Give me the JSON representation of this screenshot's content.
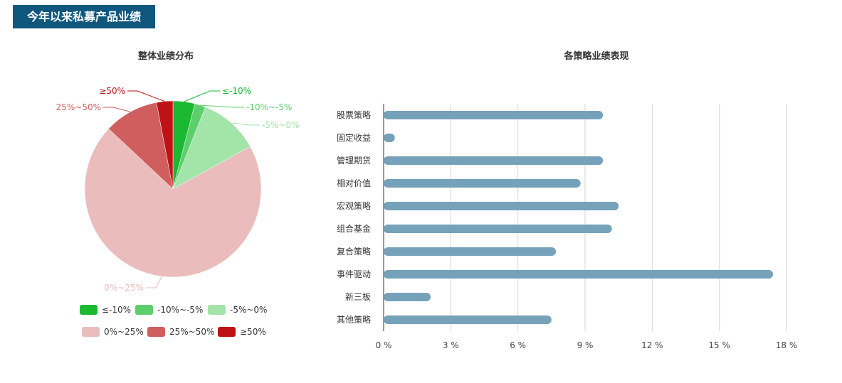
{
  "header": {
    "title": "今年以来私募产品业绩"
  },
  "charts": {
    "pie_title": "整体业绩分布",
    "bar_title": "各策略业绩表现"
  },
  "chart_data": [
    {
      "type": "pie",
      "title": "整体业绩分布",
      "legend_position": "bottom",
      "slices": [
        {
          "label": "≤-10%",
          "value": 4,
          "color": "#1bb832"
        },
        {
          "label": "-10%~-5%",
          "value": 2,
          "color": "#5ccf6c"
        },
        {
          "label": "-5%~0%",
          "value": 11,
          "color": "#a3e4a9"
        },
        {
          "label": "0%~25%",
          "value": 70,
          "color": "#ebbcbc"
        },
        {
          "label": "25%~50%",
          "value": 10,
          "color": "#d05e5e"
        },
        {
          "label": "≥50%",
          "value": 3,
          "color": "#bd1317"
        }
      ]
    },
    {
      "type": "bar",
      "orientation": "horizontal",
      "title": "各策略业绩表现",
      "grid": true,
      "bar_color": "#76a2b9",
      "categories": [
        "股票策略",
        "固定收益",
        "管理期货",
        "相对价值",
        "宏观策略",
        "组合基金",
        "复合策略",
        "事件驱动",
        "新三板",
        "其他策略"
      ],
      "values": [
        9.8,
        0.5,
        9.8,
        8.8,
        10.5,
        10.2,
        7.7,
        17.4,
        2.1,
        7.5
      ],
      "xlim": [
        0,
        18
      ],
      "xticks": [
        0,
        3,
        6,
        9,
        12,
        15,
        18
      ],
      "xtick_labels": [
        "0 %",
        "3 %",
        "6 %",
        "9 %",
        "12 %",
        "15 %",
        "18 %"
      ]
    }
  ]
}
